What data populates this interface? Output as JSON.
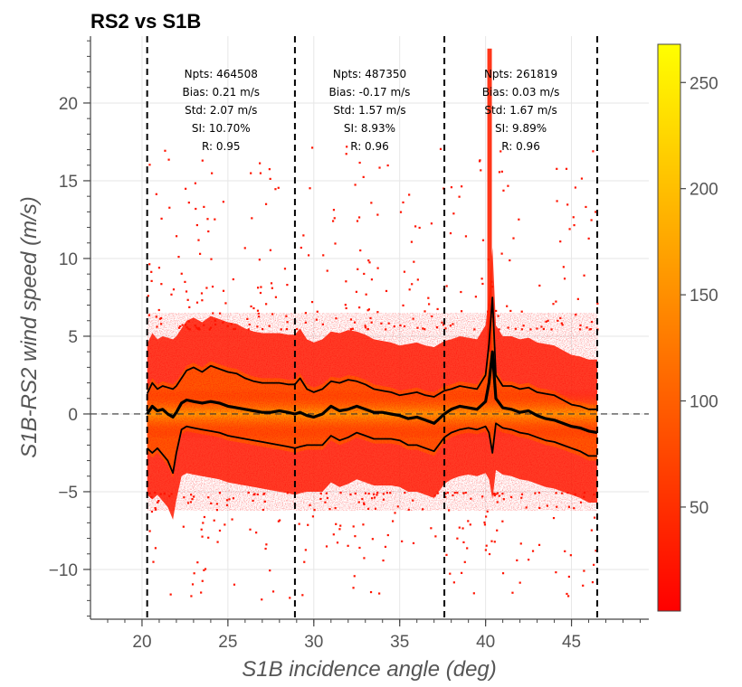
{
  "chart_data": {
    "type": "scatter",
    "title": "RS2 vs S1B",
    "xlabel": "S1B incidence angle (deg)",
    "ylabel": "S1B-RS2 wind speed (m/s)",
    "xlim": [
      17,
      49.5
    ],
    "ylim": [
      -13.2,
      24.3
    ],
    "x_ticks": [
      20,
      25,
      30,
      35,
      40,
      45
    ],
    "y_ticks": [
      -10,
      -5,
      0,
      5,
      10,
      15,
      20
    ],
    "x_tick_labels": [
      "20",
      "25",
      "30",
      "35",
      "40",
      "45"
    ],
    "y_tick_labels": [
      "−10",
      "−5",
      "0",
      "5",
      "10",
      "15",
      "20"
    ],
    "grid": true,
    "reference_line_y": 0,
    "bin_boundaries_deg": [
      20.3,
      28.9,
      37.6,
      46.5
    ],
    "colorscale": [
      "#ff0000",
      "#ff4000",
      "#ff8000",
      "#ffc000",
      "#ffff00"
    ],
    "colorbar": {
      "min": 1,
      "max": 268,
      "ticks": [
        50,
        100,
        150,
        200,
        250
      ],
      "tick_labels": [
        "50",
        "100",
        "150",
        "200",
        "250"
      ]
    },
    "stats": [
      {
        "npts": "Npts: 464508",
        "bias": "Bias: 0.21 m/s",
        "std": "Std: 2.07 m/s",
        "si": "SI: 10.70%",
        "r": "R: 0.95"
      },
      {
        "npts": "Npts: 487350",
        "bias": "Bias: -0.17 m/s",
        "std": "Std: 1.57 m/s",
        "si": "SI: 8.93%",
        "r": "R: 0.96"
      },
      {
        "npts": "Npts: 261819",
        "bias": "Bias: 0.03 m/s",
        "std": "Std: 1.67 m/s",
        "si": "SI: 9.89%",
        "r": "R: 0.96"
      }
    ],
    "series": [
      {
        "x": [
          20.3,
          20.6,
          20.9,
          21.2,
          21.5,
          21.8,
          22.0,
          22.3,
          22.6,
          23.0,
          23.5,
          24.0,
          24.5,
          25.0,
          25.5,
          26.0,
          26.5,
          27.0,
          27.5,
          28.0,
          28.5,
          28.9,
          29.2,
          29.6,
          30.0,
          30.5,
          31.0,
          31.5,
          32.0,
          32.5,
          33.0,
          33.5,
          34.0,
          34.5,
          35.0,
          35.5,
          36.0,
          36.5,
          37.0,
          37.6,
          38.0,
          38.5,
          39.0,
          39.5,
          40.0,
          40.2,
          40.4,
          40.6,
          41.0,
          41.5,
          42.0,
          42.5,
          43.0,
          43.5,
          44.0,
          44.5,
          45.0,
          45.5,
          46.0,
          46.5
        ],
        "values": [
          0.0,
          0.5,
          0.2,
          0.3,
          0.0,
          -0.2,
          0.1,
          0.7,
          0.9,
          0.8,
          0.7,
          0.8,
          0.7,
          0.5,
          0.4,
          0.3,
          0.2,
          0.1,
          0.1,
          0.2,
          0.1,
          0.0,
          0.1,
          -0.1,
          -0.2,
          0.0,
          0.5,
          0.2,
          0.3,
          0.5,
          0.3,
          0.1,
          0.1,
          0.0,
          -0.1,
          -0.3,
          -0.2,
          -0.4,
          -0.6,
          0.0,
          0.3,
          0.5,
          0.4,
          0.3,
          0.8,
          2.0,
          4.0,
          1.0,
          0.4,
          0.3,
          0.1,
          0.2,
          -0.1,
          -0.3,
          -0.4,
          -0.6,
          -0.8,
          -0.9,
          -1.1,
          -1.2
        ]
      },
      {
        "x": [
          20.3,
          20.6,
          20.9,
          21.2,
          21.5,
          21.8,
          22.0,
          22.3,
          22.6,
          23.0,
          23.5,
          24.0,
          24.5,
          25.0,
          25.5,
          26.0,
          26.5,
          27.0,
          27.5,
          28.0,
          28.5,
          28.9,
          29.2,
          29.6,
          30.0,
          30.5,
          31.0,
          31.5,
          32.0,
          32.5,
          33.0,
          33.5,
          34.0,
          34.5,
          35.0,
          35.5,
          36.0,
          36.5,
          37.0,
          37.6,
          38.0,
          38.5,
          39.0,
          39.5,
          40.0,
          40.2,
          40.4,
          40.6,
          41.0,
          41.5,
          42.0,
          42.5,
          43.0,
          43.5,
          44.0,
          44.5,
          45.0,
          45.5,
          46.0,
          46.5
        ],
        "values": [
          1.3,
          2.0,
          1.6,
          1.8,
          1.7,
          1.6,
          1.8,
          2.3,
          2.8,
          3.0,
          2.7,
          3.1,
          2.9,
          2.7,
          2.6,
          2.3,
          2.1,
          2.0,
          2.0,
          2.0,
          1.9,
          1.9,
          2.3,
          1.6,
          1.4,
          1.6,
          2.1,
          2.0,
          2.2,
          2.1,
          1.9,
          1.6,
          1.5,
          1.4,
          1.2,
          1.3,
          1.4,
          1.2,
          1.1,
          1.5,
          1.6,
          1.8,
          1.7,
          1.6,
          2.5,
          4.5,
          7.5,
          2.5,
          1.8,
          1.8,
          1.6,
          1.7,
          1.4,
          1.3,
          1.2,
          0.9,
          0.6,
          0.5,
          0.3,
          0.3
        ]
      },
      {
        "x": [
          20.3,
          20.6,
          20.9,
          21.2,
          21.5,
          21.8,
          22.0,
          22.3,
          22.6,
          23.0,
          23.5,
          24.0,
          24.5,
          25.0,
          25.5,
          26.0,
          26.5,
          27.0,
          27.5,
          28.0,
          28.5,
          28.9,
          29.2,
          29.6,
          30.0,
          30.5,
          31.0,
          31.5,
          32.0,
          32.5,
          33.0,
          33.5,
          34.0,
          34.5,
          35.0,
          35.5,
          36.0,
          36.5,
          37.0,
          37.6,
          38.0,
          38.5,
          39.0,
          39.5,
          40.0,
          40.2,
          40.4,
          40.6,
          41.0,
          41.5,
          42.0,
          42.5,
          43.0,
          43.5,
          44.0,
          44.5,
          45.0,
          45.5,
          46.0,
          46.5
        ],
        "values": [
          -2.2,
          -2.5,
          -2.2,
          -2.6,
          -3.0,
          -3.8,
          -2.5,
          -1.0,
          -0.8,
          -0.9,
          -1.0,
          -1.1,
          -1.2,
          -1.4,
          -1.5,
          -1.6,
          -1.7,
          -1.8,
          -1.9,
          -2.0,
          -2.1,
          -2.2,
          -2.1,
          -2.0,
          -2.0,
          -2.0,
          -1.4,
          -1.7,
          -1.5,
          -1.2,
          -1.4,
          -1.6,
          -1.6,
          -1.6,
          -1.7,
          -2.0,
          -2.0,
          -2.2,
          -2.4,
          -1.5,
          -1.2,
          -1.0,
          -0.9,
          -1.0,
          -0.8,
          -1.2,
          -2.5,
          -0.6,
          -0.9,
          -1.0,
          -1.2,
          -1.3,
          -1.5,
          -1.7,
          -1.8,
          -2.0,
          -2.2,
          -2.4,
          -2.7,
          -2.7
        ]
      }
    ]
  }
}
